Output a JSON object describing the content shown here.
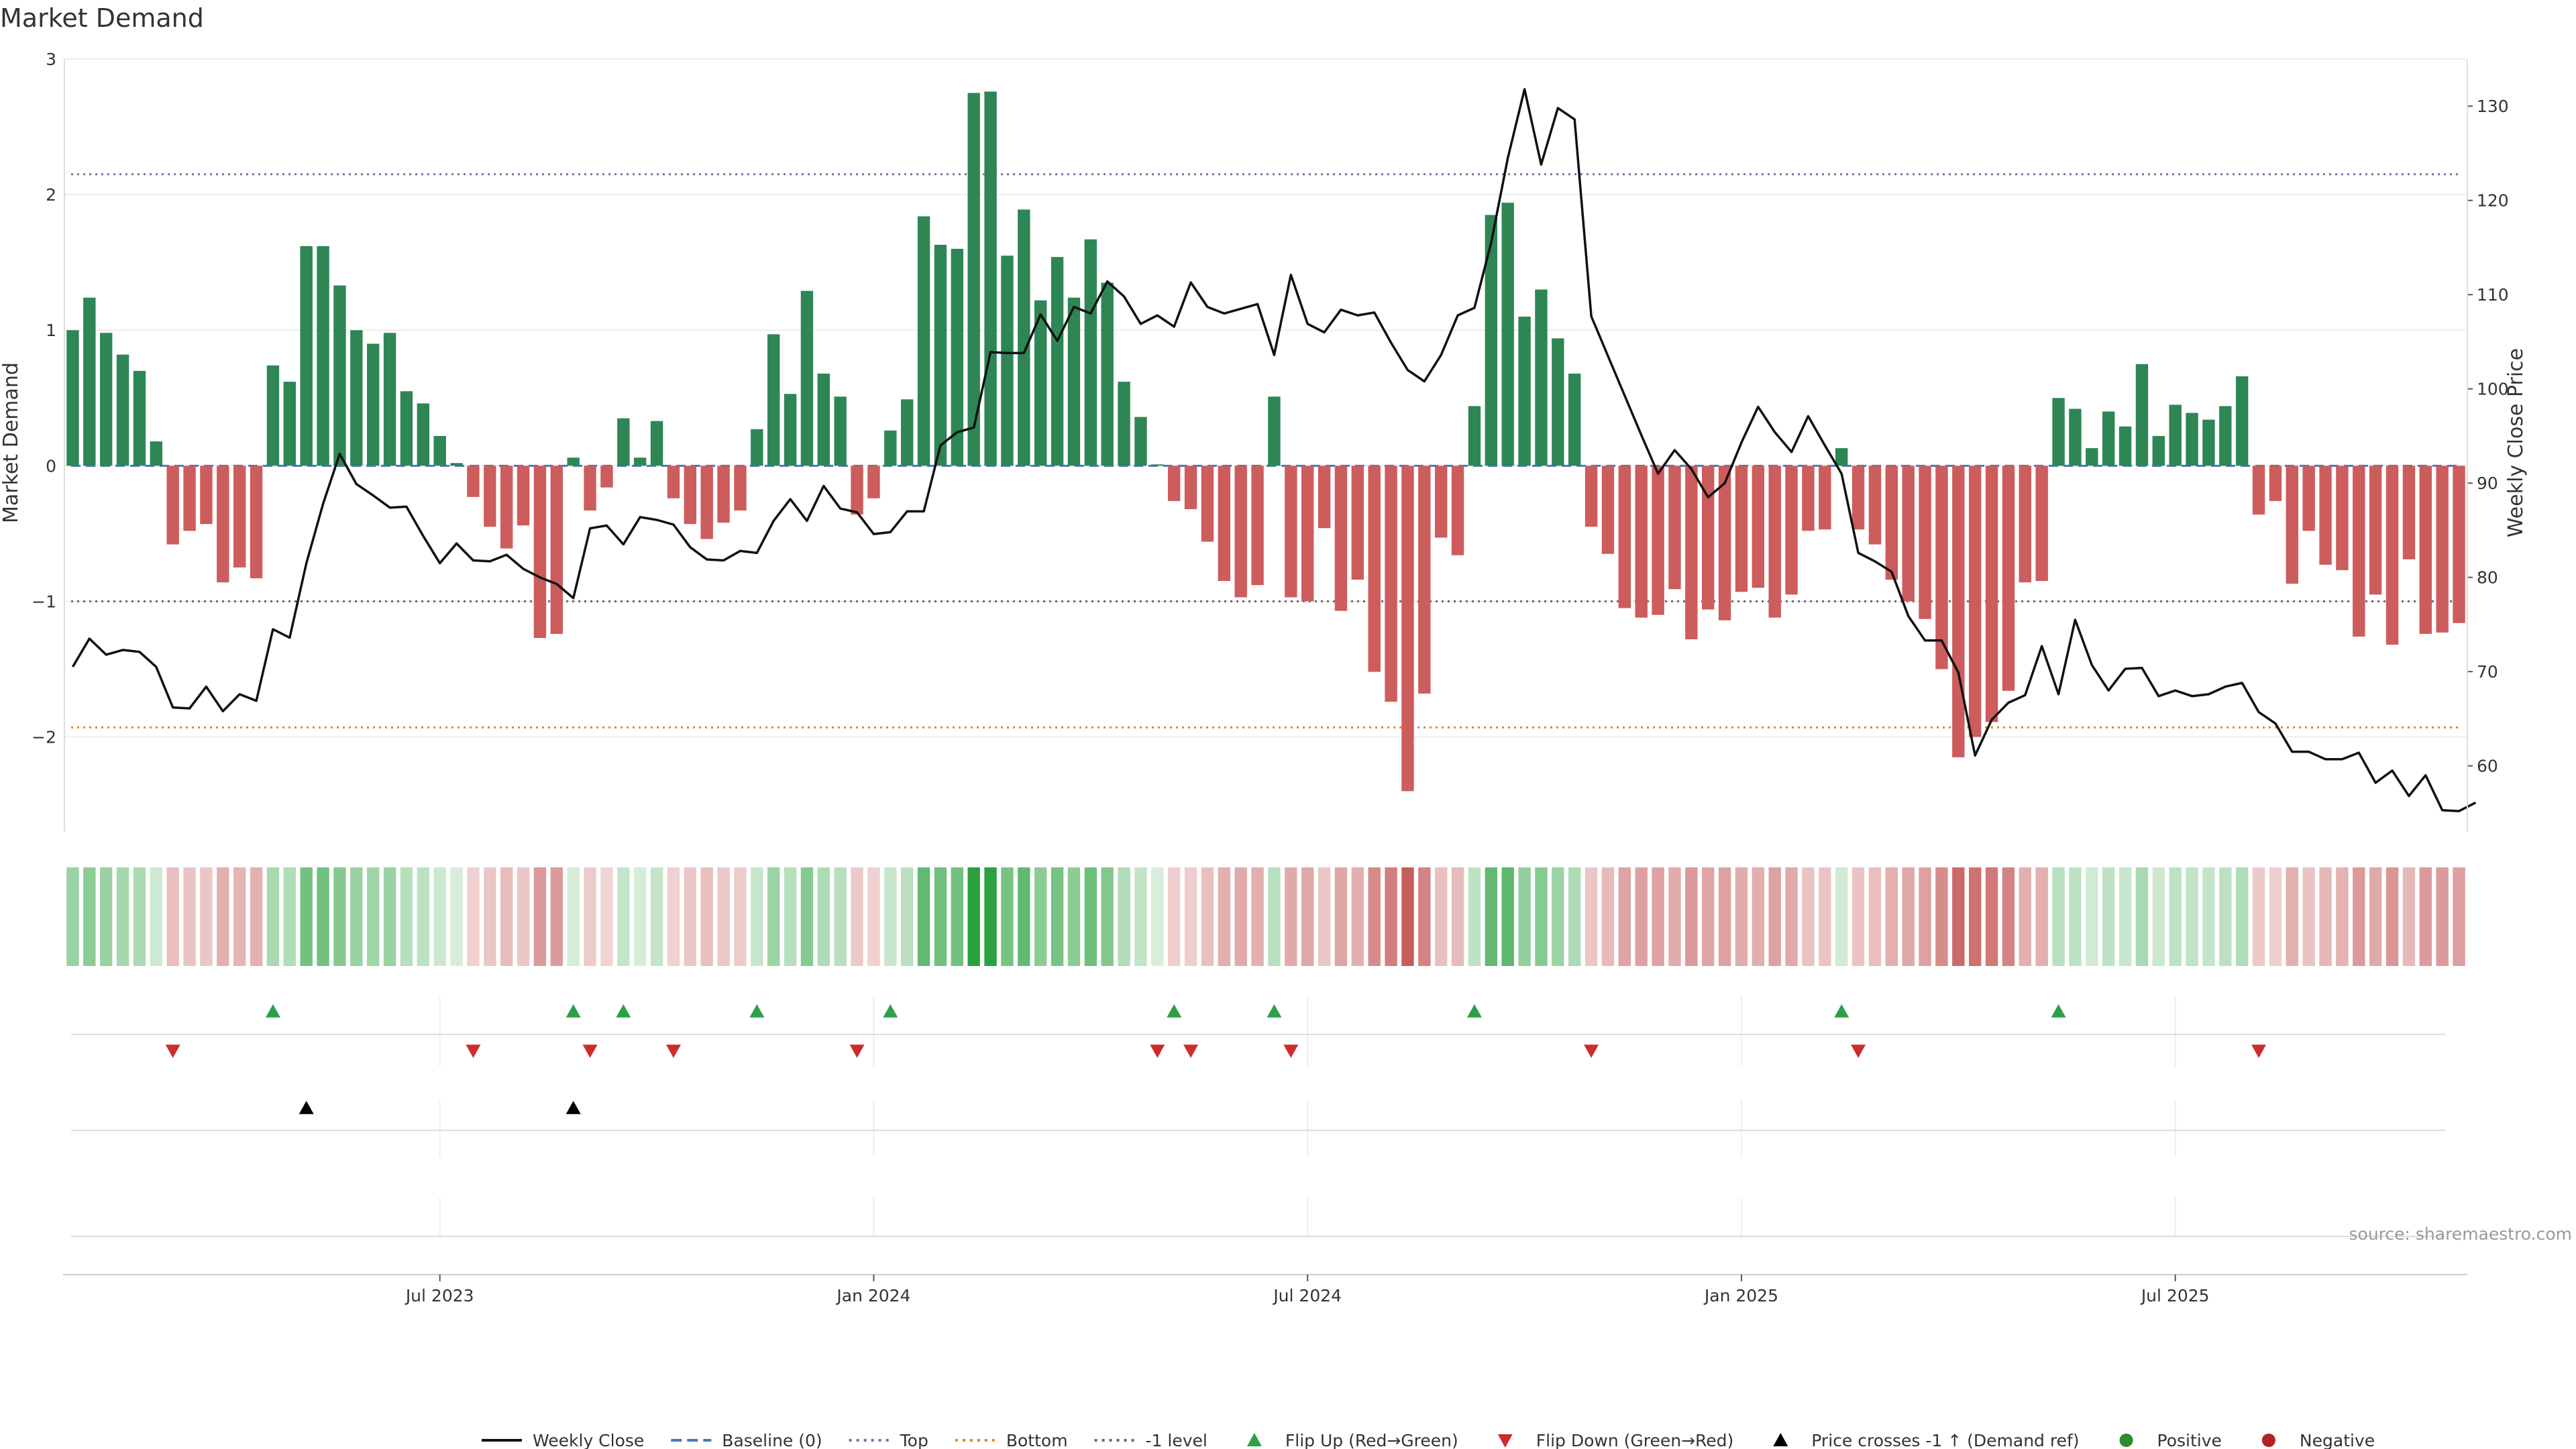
{
  "chart_data": {
    "type": "bar",
    "title": "Market Demand",
    "ylabel_left": "Market Demand",
    "ylabel_right": "Weekly Close Price",
    "ylim_left": [
      -2.7,
      3
    ],
    "ylim_right": [
      53,
      135
    ],
    "yticks_left": [
      3,
      2,
      1,
      0,
      -1,
      -2
    ],
    "yticks_left_labels": [
      "3",
      "2",
      "1",
      "0",
      "−1",
      "−2"
    ],
    "yticks_right": [
      130,
      120,
      110,
      100,
      90,
      80,
      70,
      60
    ],
    "yticks_right_labels": [
      "130",
      "120",
      "110",
      "100",
      "90",
      "80",
      "70",
      "60"
    ],
    "x_labels": [
      {
        "label": "Jul 2023",
        "week": 22
      },
      {
        "label": "Jan 2024",
        "week": 48
      },
      {
        "label": "Jul 2024",
        "week": 74
      },
      {
        "label": "Jan 2025",
        "week": 100
      },
      {
        "label": "Jul 2025",
        "week": 126
      }
    ],
    "reference_lines": [
      {
        "name": "Top",
        "value": 2.15,
        "color": "#7a6fa8",
        "dash": "3,6"
      },
      {
        "name": "Bottom",
        "value": -1.93,
        "color": "#e08a20",
        "dash": "3,6"
      },
      {
        "name": "-1 level",
        "value": -1,
        "color": "#666677",
        "dash": "3,6"
      },
      {
        "name": "Baseline (0)",
        "value": 0,
        "color": "#4a78b5",
        "dash": "14,8"
      }
    ],
    "demand_weekly": [
      1.0,
      1.24,
      0.98,
      0.82,
      0.7,
      0.18,
      -0.58,
      -0.48,
      -0.43,
      -0.86,
      -0.75,
      -0.83,
      0.74,
      0.62,
      1.62,
      1.62,
      1.33,
      1.0,
      0.9,
      0.98,
      0.55,
      0.46,
      0.22,
      0.02,
      -0.23,
      -0.45,
      -0.61,
      -0.44,
      -1.27,
      -1.24,
      0.06,
      -0.33,
      -0.16,
      0.35,
      0.06,
      0.33,
      -0.24,
      -0.43,
      -0.54,
      -0.42,
      -0.33,
      0.27,
      0.97,
      0.53,
      1.29,
      0.68,
      0.51,
      -0.36,
      -0.24,
      0.26,
      0.49,
      1.84,
      1.63,
      1.6,
      2.75,
      2.76,
      1.55,
      1.89,
      1.22,
      1.54,
      1.24,
      1.67,
      1.35,
      0.62,
      0.36,
      0.01,
      -0.26,
      -0.32,
      -0.56,
      -0.85,
      -0.97,
      -0.88,
      0.51,
      -0.97,
      -1.0,
      -0.46,
      -1.07,
      -0.84,
      -1.52,
      -1.74,
      -2.4,
      -1.68,
      -0.53,
      -0.66,
      0.44,
      1.85,
      1.94,
      1.1,
      1.3,
      0.94,
      0.68,
      -0.45,
      -0.65,
      -1.05,
      -1.12,
      -1.1,
      -0.91,
      -1.28,
      -1.06,
      -1.14,
      -0.93,
      -0.9,
      -1.12,
      -0.95,
      -0.48,
      -0.47,
      0.13,
      -0.47,
      -0.58,
      -0.84,
      -1.0,
      -1.13,
      -1.5,
      -2.15,
      -2.0,
      -1.89,
      -1.66,
      -0.86,
      -0.85,
      0.5,
      0.42,
      0.13,
      0.4,
      0.29,
      0.75,
      0.22,
      0.45,
      0.39,
      0.34,
      0.44,
      0.66,
      -0.36,
      -0.26,
      -0.87,
      -0.48,
      -0.73,
      -0.77,
      -1.26,
      -0.95,
      -1.32,
      -0.69,
      -1.24,
      -1.23,
      -1.16
    ],
    "price_weekly": [
      70.5,
      73.5,
      71.8,
      72.3,
      72.1,
      70.5,
      66.2,
      66.1,
      68.4,
      65.8,
      67.6,
      66.9,
      74.5,
      73.6,
      81.5,
      87.8,
      93.1,
      89.9,
      88.7,
      87.4,
      87.5,
      84.4,
      81.5,
      83.6,
      81.8,
      81.7,
      82.4,
      80.9,
      80.0,
      79.3,
      77.8,
      85.2,
      85.5,
      83.5,
      86.4,
      86.1,
      85.6,
      83.2,
      81.9,
      81.8,
      82.8,
      82.6,
      86.0,
      88.3,
      86.0,
      89.7,
      87.3,
      86.9,
      84.6,
      84.8,
      87.0,
      87.0,
      94.0,
      95.4,
      95.9,
      103.9,
      103.8,
      103.8,
      107.9,
      105.1,
      108.7,
      108.0,
      111.4,
      109.8,
      106.9,
      107.8,
      106.6,
      111.3,
      108.7,
      108.0,
      108.5,
      109.0,
      103.6,
      112.1,
      106.9,
      106.0,
      108.4,
      107.8,
      108.1,
      104.9,
      102.0,
      100.8,
      103.6,
      107.8,
      108.6,
      115.5,
      124.5,
      131.8,
      123.8,
      129.8,
      128.6,
      107.7,
      103.5,
      99.3,
      95.1,
      91.0,
      93.5,
      91.5,
      88.5,
      90.0,
      94.3,
      98.1,
      95.4,
      93.3,
      97.1,
      94.0,
      91.0,
      82.6,
      81.7,
      80.6,
      75.9,
      73.3,
      73.3,
      69.9,
      61.1,
      64.9,
      66.7,
      67.5,
      72.7,
      67.6,
      75.5,
      70.7,
      68.0,
      70.3,
      70.4,
      67.4,
      68.0,
      67.4,
      67.6,
      68.4,
      68.8,
      65.7,
      64.5,
      61.5,
      61.5,
      60.7,
      60.7,
      61.4,
      58.2,
      59.5,
      56.8,
      59.0,
      55.3,
      55.2,
      56.1
    ],
    "flip_up_weeks": [
      12,
      30,
      33,
      41,
      49,
      66,
      72,
      84,
      106,
      119
    ],
    "flip_down_weeks": [
      6,
      24,
      31,
      36,
      47,
      65,
      67,
      73,
      91,
      107,
      131
    ],
    "price_cross_up_weeks": [
      14,
      30
    ],
    "legend": [
      {
        "label": "Weekly Close",
        "kind": "line",
        "color": "#111111"
      },
      {
        "label": "Baseline (0)",
        "kind": "dash",
        "color": "#4a78b5"
      },
      {
        "label": "Top",
        "kind": "dot",
        "color": "#7a6fa8"
      },
      {
        "label": "Bottom",
        "kind": "dot",
        "color": "#e08a20"
      },
      {
        "label": "-1 level",
        "kind": "dot",
        "color": "#666677"
      },
      {
        "label": "Flip Up (Red→Green)",
        "kind": "tri-up",
        "color": "#2ca048"
      },
      {
        "label": "Flip Down (Green→Red)",
        "kind": "tri-down",
        "color": "#cc2c2c"
      },
      {
        "label": "Price crosses -1 ↑ (Demand ref)",
        "kind": "tri-up",
        "color": "#000000"
      },
      {
        "label": "Positive",
        "kind": "circle",
        "color": "#2e8b2e"
      },
      {
        "label": "Negative",
        "kind": "circle",
        "color": "#b22222"
      }
    ],
    "colors": {
      "positive_bar": "#2e8655",
      "negative_bar": "#cd5c5c",
      "price_line": "#111111"
    }
  },
  "source_text": "source: sharemaestro.com"
}
